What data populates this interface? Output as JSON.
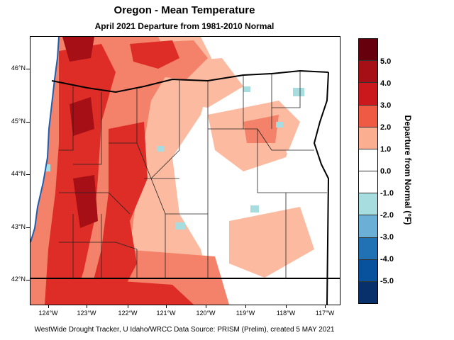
{
  "title": "Oregon - Mean Temperature",
  "subtitle": "April 2021  Departure from 1981-2010 Normal",
  "credit": "WestWide Drought Tracker, U Idaho/WRCC Data Source: PRISM (Prelim), created  5 MAY 2021",
  "axes": {
    "latitude_labels": [
      "46°N",
      "45°N",
      "44°N",
      "43°N",
      "42°N"
    ],
    "longitude_labels": [
      "124°W",
      "123°W",
      "122°W",
      "121°W",
      "120°W",
      "119°W",
      "118°W",
      "117°W"
    ]
  },
  "legend": {
    "title": "Departure from Normal (°F)",
    "tick_labels": [
      "5.0",
      "4.0",
      "3.0",
      "2.0",
      "1.0",
      "0.0",
      "-1.0",
      "-2.0",
      "-3.0",
      "-4.0",
      "-5.0"
    ],
    "colors": [
      "#67000d",
      "#a50f15",
      "#cb181d",
      "#ef5a45",
      "#fcae91",
      "#ffffff",
      "#ffffff",
      "#a8dde0",
      "#6baed6",
      "#2171b5",
      "#08519c",
      "#08306b"
    ]
  },
  "map": {
    "colors": {
      "near_normal": "#ffffff",
      "light_warm": "#fcbba1",
      "warm": "#f4826a",
      "warmer": "#de2d26",
      "hot": "#a50f15",
      "cool": "#a8dde0",
      "ocean": "#ffffff"
    }
  }
}
